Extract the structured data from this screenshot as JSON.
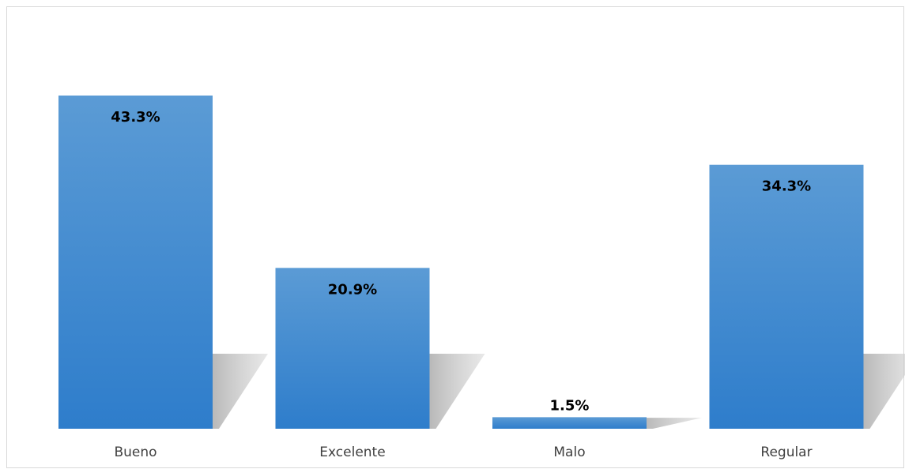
{
  "chart_data": {
    "type": "bar",
    "title": "",
    "xlabel": "",
    "ylabel": "",
    "categories": [
      "Bueno",
      "Excelente",
      "Malo",
      "Regular"
    ],
    "values": [
      43.3,
      20.9,
      1.5,
      34.3
    ],
    "value_labels": [
      "43.3%",
      "20.9%",
      "1.5%",
      "34.3%"
    ],
    "ylim": [
      0,
      43.3
    ],
    "grid": false,
    "legend": "none",
    "bar_color_top": "#5b9bd5",
    "bar_color_bottom": "#2e7dcb",
    "shadow_color": "#c8c8c8"
  }
}
